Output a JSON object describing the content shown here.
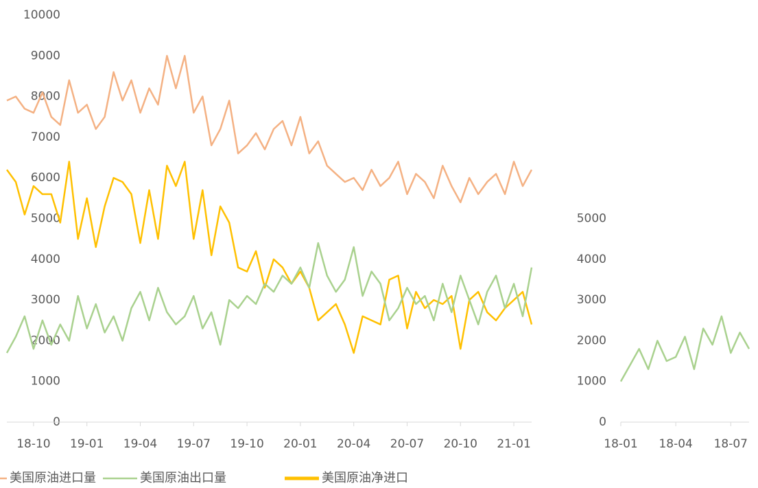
{
  "chart_data": [
    {
      "type": "line",
      "categories": [
        null,
        null,
        null,
        "18-10",
        null,
        null,
        null,
        null,
        null,
        "19-01",
        null,
        null,
        null,
        null,
        null,
        "19-04",
        null,
        null,
        null,
        null,
        null,
        "19-07",
        null,
        null,
        null,
        null,
        null,
        "19-10",
        null,
        null,
        null,
        null,
        null,
        "20-01",
        null,
        null,
        null,
        null,
        null,
        "20-04",
        null,
        null,
        null,
        null,
        null,
        "20-07",
        null,
        null,
        null,
        null,
        null,
        "20-10",
        null,
        null,
        null,
        null,
        null,
        "21-01",
        null,
        null
      ],
      "series": [
        {
          "name": "美国原油进口量",
          "color": "#f4b183",
          "values": [
            7900,
            8000,
            7700,
            7600,
            8100,
            7500,
            7300,
            8400,
            7600,
            7800,
            7200,
            7500,
            8600,
            7900,
            8400,
            7600,
            8200,
            7800,
            9000,
            8200,
            9000,
            7600,
            8000,
            6800,
            7200,
            7900,
            6600,
            6800,
            7100,
            6700,
            7200,
            7400,
            6800,
            7500,
            6600,
            6900,
            6300,
            6100,
            5900,
            6000,
            5700,
            6200,
            5800,
            6000,
            6400,
            5600,
            6100,
            5900,
            5500,
            6300,
            5800,
            5400,
            6000,
            5600,
            5900,
            6100,
            5600,
            6400,
            5800,
            6200
          ]
        },
        {
          "name": "美国原油出口量",
          "color": "#a9d18e",
          "values": [
            1700,
            2100,
            2600,
            1800,
            2500,
            1900,
            2400,
            2000,
            3100,
            2300,
            2900,
            2200,
            2600,
            2000,
            2800,
            3200,
            2500,
            3300,
            2700,
            2400,
            2600,
            3100,
            2300,
            2700,
            1900,
            3000,
            2800,
            3100,
            2900,
            3400,
            3200,
            3600,
            3400,
            3800,
            3300,
            4400,
            3600,
            3200,
            3500,
            4300,
            3100,
            3700,
            3400,
            2500,
            2800,
            3300,
            2900,
            3100,
            2500,
            3400,
            2700,
            3600,
            3000,
            2400,
            3200,
            3600,
            2800,
            3400,
            2600,
            3800
          ]
        },
        {
          "name": "美国原油净进口",
          "color": "#ffc000",
          "values": [
            6200,
            5900,
            5100,
            5800,
            5600,
            5600,
            4900,
            6400,
            4500,
            5500,
            4300,
            5300,
            6000,
            5900,
            5600,
            4400,
            5700,
            4500,
            6300,
            5800,
            6400,
            4500,
            5700,
            4100,
            5300,
            4900,
            3800,
            3700,
            4200,
            3300,
            4000,
            3800,
            3400,
            3700,
            3300,
            2500,
            2700,
            2900,
            2400,
            1700,
            2600,
            2500,
            2400,
            3500,
            3600,
            2300,
            3200,
            2800,
            3000,
            2900,
            3100,
            1800,
            3000,
            3200,
            2700,
            2500,
            2800,
            3000,
            3200,
            2400
          ]
        }
      ],
      "ylim": [
        0,
        10000
      ],
      "yticks": [
        0,
        1000,
        2000,
        3000,
        4000,
        5000,
        6000,
        7000,
        8000,
        9000,
        10000
      ]
    },
    {
      "type": "line",
      "categories": [
        "18-01",
        null,
        null,
        null,
        null,
        null,
        "18-04",
        null,
        null,
        null,
        null,
        null,
        "18-07",
        null,
        null
      ],
      "series": [
        {
          "name": "美国原油出口量",
          "color": "#a9d18e",
          "values": [
            1000,
            1400,
            1800,
            1300,
            2000,
            1500,
            1600,
            2100,
            1300,
            2300,
            1900,
            2600,
            1700,
            2200,
            1800
          ]
        }
      ],
      "ylim": [
        0,
        10000
      ],
      "yticks": [
        0,
        1000,
        2000,
        3000,
        4000,
        5000
      ]
    }
  ]
}
